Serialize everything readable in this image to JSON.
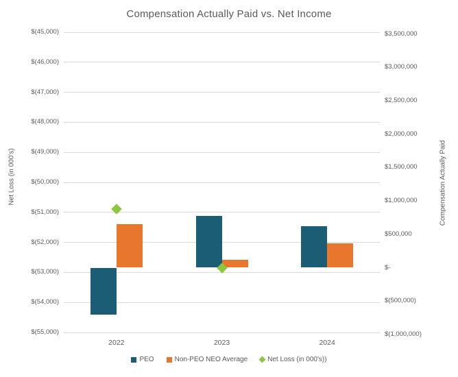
{
  "title": "Compensation Actually Paid vs. Net Income",
  "chart_data": {
    "type": "combo",
    "grid": true,
    "legend_position": "bottom",
    "categories": [
      "2022",
      "2023",
      "2024"
    ],
    "series": [
      {
        "name": "PEO",
        "type": "bar",
        "axis": "right",
        "color": "#1C5D76",
        "values": [
          -700000,
          775000,
          620000
        ]
      },
      {
        "name": "Non-PEO NEO Average",
        "type": "bar",
        "axis": "right",
        "color": "#E8762D",
        "values": [
          650000,
          115000,
          360000
        ]
      },
      {
        "name": "Net Loss (in 000's))",
        "type": "scatter",
        "marker": "diamond",
        "axis": "left",
        "color": "#8DC63F",
        "values": [
          -50900,
          -52850,
          null
        ]
      }
    ],
    "left_axis": {
      "title": "Net Loss (in 000's)",
      "min": -55000,
      "max": -45000,
      "ticks": [
        "$(45,000)",
        "$(46,000)",
        "$(47,000)",
        "$(48,000)",
        "$(49,000)",
        "$(50,000)",
        "$(51,000)",
        "$(52,000)",
        "$(53,000)",
        "$(54,000)",
        "$(55,000)"
      ],
      "tick_values": [
        -45000,
        -46000,
        -47000,
        -48000,
        -49000,
        -50000,
        -51000,
        -52000,
        -53000,
        -54000,
        -55000
      ]
    },
    "right_axis": {
      "title": "Compensation Actually Paid",
      "min": -1000000,
      "max": 3500000,
      "ticks": [
        "$3,500,000",
        "$3,000,000",
        "$2,500,000",
        "$2,000,000",
        "$1,500,000",
        "$1,000,000",
        "$500,000",
        "$-",
        "$(500,000)",
        "$(1,000,000)"
      ],
      "tick_values": [
        3500000,
        3000000,
        2500000,
        2000000,
        1500000,
        1000000,
        500000,
        0,
        -500000,
        -1000000
      ]
    },
    "colors": {
      "gridline": "#D9D9D9",
      "text": "#595959"
    }
  }
}
